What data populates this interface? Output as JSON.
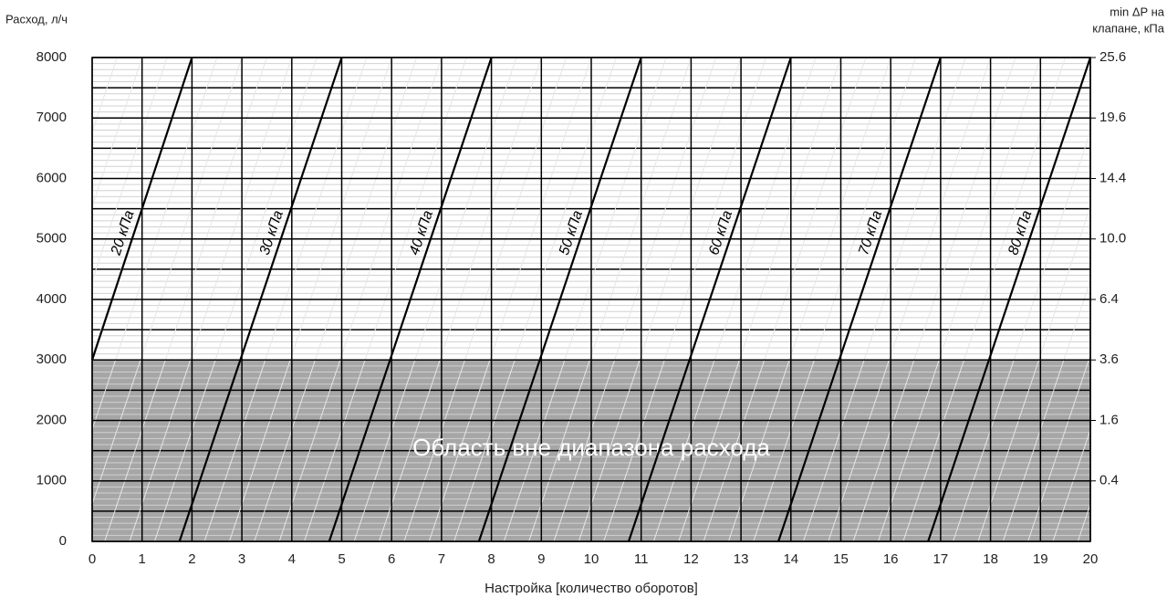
{
  "chart_data": {
    "type": "line",
    "ylabel": "Расход, л/ч",
    "y2label": [
      "min ΔP на",
      "клапане, кПа"
    ],
    "xlabel": "Настройка [количество оборотов]",
    "xlim": [
      0,
      20
    ],
    "xticks": [
      0,
      1,
      2,
      3,
      4,
      5,
      6,
      7,
      8,
      9,
      10,
      11,
      12,
      13,
      14,
      15,
      16,
      17,
      18,
      19,
      20
    ],
    "ylim": [
      0,
      8000
    ],
    "yticks": [
      0,
      1000,
      2000,
      3000,
      4000,
      5000,
      6000,
      7000,
      8000
    ],
    "y2scale": "sqrt",
    "y2lim": [
      0,
      25.6
    ],
    "y2ticks": [
      0.4,
      1.6,
      3.6,
      6.4,
      {
        "value": 10,
        "label": "10.0"
      },
      14.4,
      19.6,
      25.6
    ],
    "grid": true,
    "shaded_region": {
      "ylim": [
        0,
        3000
      ],
      "color": "#a6a6a6",
      "label": "Область вне диапазона расхода"
    },
    "series": [
      {
        "name": "20 кПа",
        "color": "#000000",
        "x": [
          0,
          2
        ],
        "values": [
          3000,
          8000
        ]
      },
      {
        "name": "30 кПа",
        "color": "#000000",
        "x": [
          1.75,
          5
        ],
        "values": [
          0,
          8000
        ]
      },
      {
        "name": "40 кПа",
        "color": "#000000",
        "x": [
          4.75,
          8
        ],
        "values": [
          0,
          8000
        ]
      },
      {
        "name": "50 кПа",
        "color": "#000000",
        "x": [
          7.75,
          11
        ],
        "values": [
          0,
          8000
        ]
      },
      {
        "name": "60 кПа",
        "color": "#000000",
        "x": [
          10.75,
          14
        ],
        "values": [
          0,
          8000
        ]
      },
      {
        "name": "70 кПа",
        "color": "#000000",
        "x": [
          13.75,
          17
        ],
        "values": [
          0,
          8000
        ]
      },
      {
        "name": "80 кПа",
        "color": "#000000",
        "x": [
          16.75,
          20
        ],
        "values": [
          0,
          8000
        ]
      }
    ]
  }
}
